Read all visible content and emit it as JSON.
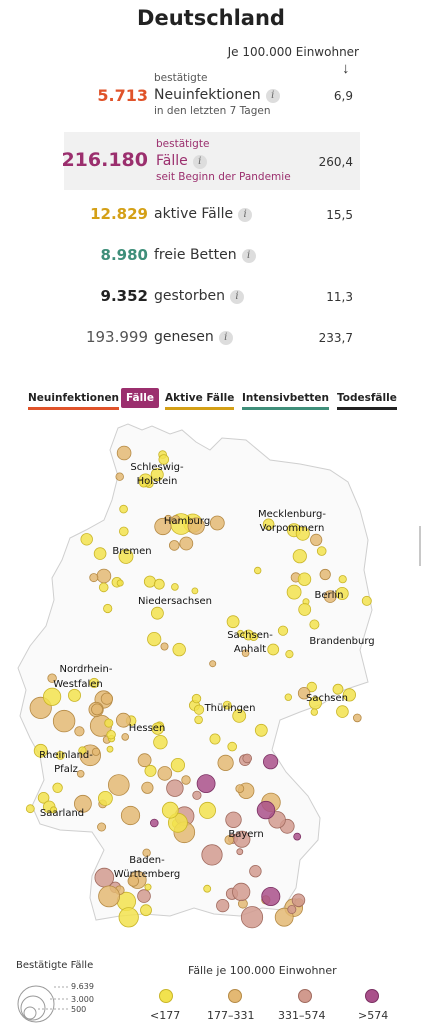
{
  "title": "Deutschland",
  "per100k_header": "Je 100.000 Einwohner",
  "arrow": "↓",
  "stats": {
    "neuinfektionen": {
      "value": "5.713",
      "label_top": "bestätigte",
      "label": "Neuinfektionen",
      "label_bottom": "in den letzten 7 Tagen",
      "rate": "6,9",
      "color": "#e0532a"
    },
    "faelle": {
      "value": "216.180",
      "label_top": "bestätigte",
      "label": "Fälle",
      "label_bottom": "seit Beginn der Pandemie",
      "rate": "260,4",
      "color": "#9b2f6e"
    },
    "aktive": {
      "value": "12.829",
      "label": "aktive Fälle",
      "rate": "15,5",
      "color": "#d4a017"
    },
    "betten": {
      "value": "8.980",
      "label": "freie Betten",
      "color": "#3f8f7a"
    },
    "gestorben": {
      "value": "9.352",
      "label": "gestorben",
      "rate": "11,3",
      "color": "#222222"
    },
    "genesen": {
      "value": "193.999",
      "label": "genesen",
      "rate": "233,7",
      "color": "#555555"
    }
  },
  "info_glyph": "i",
  "tabs": [
    {
      "label": "Neuinfektionen",
      "color": "#e0532a"
    },
    {
      "label": "Fälle",
      "color": "#9b2f6e"
    },
    {
      "label": "Aktive Fälle",
      "color": "#d4a017"
    },
    {
      "label": "Intensivbetten",
      "color": "#3f8f7a"
    },
    {
      "label": "Todesfälle",
      "color": "#222222"
    }
  ],
  "map": {
    "states": [
      "Schleswig-",
      "Holstein",
      "Hamburg",
      "Mecklenburg-",
      "Vorpommern",
      "Bremen",
      "Niedersachsen",
      "Berlin",
      "Sachsen-",
      "Anhalt",
      "Brandenburg",
      "Nordrhein-",
      "Westfalen",
      "Sachsen",
      "Hessen",
      "Thüringen",
      "Rheinland-",
      "Pfalz",
      "Saarland",
      "Bayern",
      "Baden-",
      "Württemberg"
    ]
  },
  "legend": {
    "size_title": "Bestätigte Fälle",
    "size_values": [
      "9.639",
      "3.000",
      "500"
    ],
    "color_title": "Fälle je 100.000 Einwohner",
    "bins": [
      {
        "label": "<177",
        "color": "#f2e24e"
      },
      {
        "label": "177–331",
        "color": "#e3b873"
      },
      {
        "label": "331–574",
        "color": "#d19a8e"
      },
      {
        "label": ">574",
        "color": "#a9508a"
      }
    ]
  }
}
